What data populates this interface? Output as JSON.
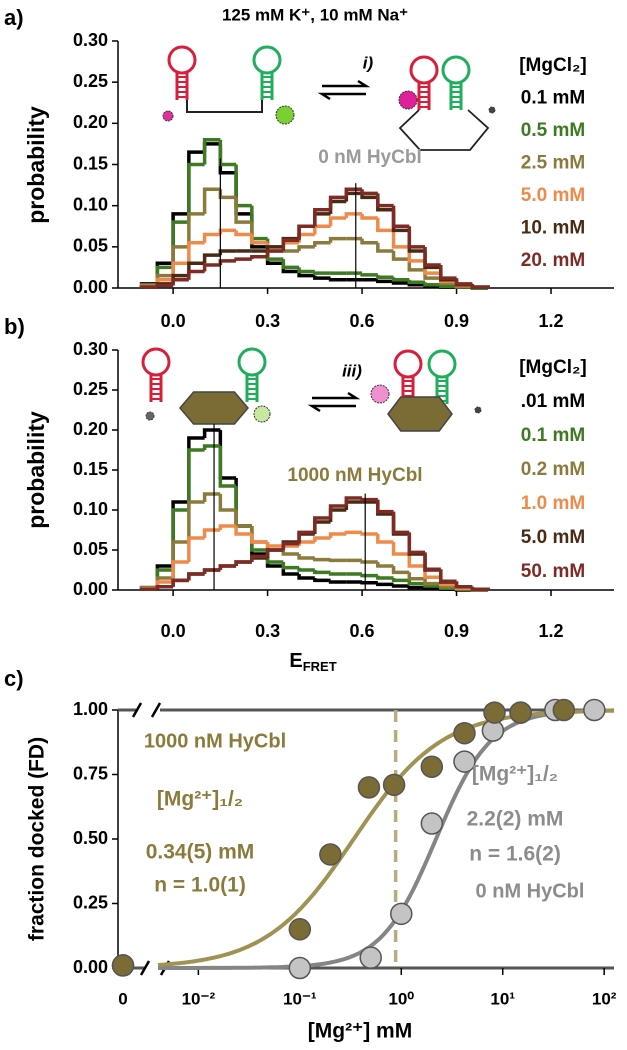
{
  "chart_data": [
    {
      "type": "histogram",
      "panel_label": "a)",
      "title": "125 mM K⁺, 10 mM Na⁺",
      "ylabel": "probability",
      "annotations": [
        {
          "text": "i)",
          "color": "#000000"
        },
        {
          "text": "0 nM HyCbl",
          "color": "#9a9a9a"
        }
      ],
      "legend_title": "[MgCl₂]",
      "bins": [
        -0.1,
        -0.05,
        0,
        0.05,
        0.1,
        0.15,
        0.2,
        0.25,
        0.3,
        0.35,
        0.4,
        0.45,
        0.5,
        0.55,
        0.6,
        0.65,
        0.7,
        0.75,
        0.8,
        0.85,
        0.9,
        0.95,
        1.0
      ],
      "series": [
        {
          "name": "0.1 mM",
          "color": "#000000",
          "values": [
            0.005,
            0.03,
            0.09,
            0.165,
            0.175,
            0.14,
            0.09,
            0.05,
            0.03,
            0.02,
            0.015,
            0.012,
            0.01,
            0.01,
            0.01,
            0.008,
            0.006,
            0.004,
            0.002,
            0.001,
            0.001,
            0
          ]
        },
        {
          "name": "0.5 mM",
          "color": "#3d7a22",
          "values": [
            0.004,
            0.025,
            0.08,
            0.15,
            0.18,
            0.15,
            0.1,
            0.06,
            0.035,
            0.025,
            0.02,
            0.018,
            0.018,
            0.018,
            0.016,
            0.013,
            0.01,
            0.007,
            0.004,
            0.002,
            0.001,
            0
          ]
        },
        {
          "name": "2.5 mM",
          "color": "#8a7b3c",
          "values": [
            0.003,
            0.015,
            0.05,
            0.09,
            0.12,
            0.11,
            0.08,
            0.055,
            0.045,
            0.045,
            0.05,
            0.055,
            0.06,
            0.06,
            0.055,
            0.045,
            0.035,
            0.022,
            0.012,
            0.006,
            0.002,
            0.001
          ]
        },
        {
          "name": "5.0 mM",
          "color": "#ee8a4a",
          "values": [
            0.002,
            0.01,
            0.03,
            0.055,
            0.065,
            0.07,
            0.065,
            0.055,
            0.05,
            0.055,
            0.065,
            0.075,
            0.085,
            0.09,
            0.085,
            0.07,
            0.05,
            0.033,
            0.018,
            0.008,
            0.003,
            0.001
          ]
        },
        {
          "name": "10. mM",
          "color": "#4a2a12",
          "values": [
            0.001,
            0.005,
            0.015,
            0.03,
            0.04,
            0.045,
            0.045,
            0.045,
            0.05,
            0.06,
            0.075,
            0.09,
            0.105,
            0.115,
            0.11,
            0.095,
            0.07,
            0.045,
            0.025,
            0.01,
            0.004,
            0.001
          ]
        },
        {
          "name": "20. mM",
          "color": "#7d2b24",
          "values": [
            0.001,
            0.003,
            0.01,
            0.02,
            0.028,
            0.033,
            0.035,
            0.038,
            0.045,
            0.058,
            0.075,
            0.095,
            0.11,
            0.12,
            0.115,
            0.1,
            0.075,
            0.05,
            0.028,
            0.012,
            0.005,
            0.001
          ]
        }
      ],
      "vlines": [
        0.15,
        0.58
      ],
      "xlim": [
        -0.175,
        1.4
      ],
      "xticks": [
        {
          "value": 0,
          "label": "0.0"
        },
        0.3,
        0.6,
        0.9,
        1.2
      ],
      "ylim": [
        0,
        0.3
      ],
      "yticks": [
        {
          "value": 0,
          "label": "0.00"
        },
        0.05,
        {
          "value": 0.1,
          "label": "0.10"
        },
        0.15,
        {
          "value": 0.2,
          "label": "0.20"
        },
        0.25,
        {
          "value": 0.3,
          "label": "0.30"
        }
      ]
    },
    {
      "type": "histogram",
      "panel_label": "b)",
      "ylabel": "probability",
      "xlabel": {
        "main": "E",
        "sub": "FRET"
      },
      "annotations": [
        {
          "text": "iii)",
          "color": "#000000"
        },
        {
          "text": "1000 nM HyCbl",
          "color": "#8a7b3c"
        }
      ],
      "legend_title": "[MgCl₂]",
      "bins": [
        -0.1,
        -0.05,
        0,
        0.05,
        0.1,
        0.15,
        0.2,
        0.25,
        0.3,
        0.35,
        0.4,
        0.45,
        0.5,
        0.55,
        0.6,
        0.65,
        0.7,
        0.75,
        0.8,
        0.85,
        0.9,
        0.95,
        1.0
      ],
      "series": [
        {
          "name": ".01 mM",
          "color": "#000000",
          "values": [
            0.003,
            0.03,
            0.11,
            0.19,
            0.2,
            0.14,
            0.08,
            0.045,
            0.03,
            0.02,
            0.015,
            0.012,
            0.01,
            0.01,
            0.009,
            0.007,
            0.005,
            0.003,
            0.002,
            0.001,
            0,
            0
          ]
        },
        {
          "name": "0.1 mM",
          "color": "#3d7a22",
          "values": [
            0.003,
            0.025,
            0.1,
            0.175,
            0.18,
            0.13,
            0.08,
            0.05,
            0.035,
            0.028,
            0.025,
            0.022,
            0.02,
            0.02,
            0.018,
            0.015,
            0.012,
            0.008,
            0.005,
            0.002,
            0.001,
            0
          ]
        },
        {
          "name": "0.2 mM",
          "color": "#8a7b3c",
          "values": [
            0.002,
            0.015,
            0.06,
            0.11,
            0.12,
            0.1,
            0.08,
            0.06,
            0.05,
            0.045,
            0.04,
            0.038,
            0.037,
            0.037,
            0.035,
            0.03,
            0.022,
            0.014,
            0.008,
            0.004,
            0.002,
            0
          ]
        },
        {
          "name": "1.0 mM",
          "color": "#ee8a4a",
          "values": [
            0.002,
            0.01,
            0.035,
            0.065,
            0.075,
            0.08,
            0.07,
            0.06,
            0.055,
            0.055,
            0.06,
            0.065,
            0.07,
            0.072,
            0.07,
            0.06,
            0.045,
            0.03,
            0.016,
            0.007,
            0.002,
            0.001
          ]
        },
        {
          "name": "5.0 mM",
          "color": "#4a2a12",
          "values": [
            0.001,
            0.004,
            0.012,
            0.02,
            0.025,
            0.03,
            0.035,
            0.04,
            0.05,
            0.06,
            0.07,
            0.085,
            0.1,
            0.11,
            0.11,
            0.095,
            0.07,
            0.045,
            0.025,
            0.01,
            0.004,
            0.001
          ]
        },
        {
          "name": "50. mM",
          "color": "#7d2b24",
          "values": [
            0.001,
            0.004,
            0.012,
            0.02,
            0.025,
            0.03,
            0.035,
            0.042,
            0.05,
            0.058,
            0.072,
            0.09,
            0.105,
            0.115,
            0.113,
            0.098,
            0.072,
            0.047,
            0.026,
            0.011,
            0.004,
            0.001
          ]
        }
      ],
      "vlines": [
        0.13,
        0.61
      ],
      "xlim": [
        -0.175,
        1.4
      ],
      "xticks": [
        {
          "value": 0,
          "label": "0.0"
        },
        0.3,
        0.6,
        0.9,
        1.2
      ],
      "ylim": [
        0,
        0.3
      ],
      "yticks": [
        {
          "value": 0,
          "label": "0.00"
        },
        0.05,
        {
          "value": 0.1,
          "label": "0.10"
        },
        0.15,
        {
          "value": 0.2,
          "label": "0.20"
        },
        0.25,
        {
          "value": 0.3,
          "label": "0.30"
        }
      ]
    },
    {
      "type": "scatter",
      "panel_label": "c)",
      "xscale": "log",
      "xlabel": "[Mg²⁺] mM",
      "ylabel": "fraction docked (FD)",
      "series": [
        {
          "name": "1000 nM HyCbl",
          "color": "#7b6c35",
          "line_color": "#a09252",
          "x": [
            0,
            0.1,
            0.2,
            0.48,
            0.85,
            2,
            4.2,
            8.3,
            15,
            40
          ],
          "values": [
            0.01,
            0.15,
            0.44,
            0.7,
            0.71,
            0.78,
            0.91,
            0.99,
            0.99,
            1.0
          ],
          "fit": {
            "k_half": 0.34,
            "n": 1.0
          },
          "annotations": [
            "[Mg²⁺]₁/₂",
            "0.34(5) mM",
            "n = 1.0(1)"
          ]
        },
        {
          "name": "0 nM HyCbl",
          "color": "#c4c4c4",
          "line_color": "#858585",
          "x": [
            0,
            0.1,
            0.5,
            1,
            2,
            4.2,
            8,
            15,
            33,
            80
          ],
          "values": [
            0.01,
            0,
            0.04,
            0.21,
            0.56,
            0.8,
            0.92,
            0.99,
            1.0,
            1.0
          ],
          "fit": {
            "k_half": 2.2,
            "n": 1.6
          },
          "annotations": [
            "[Mg²⁺]₁/₂",
            "2.2(2) mM",
            "n = 1.6(2)"
          ]
        }
      ],
      "vline": 0.88,
      "zero_tick": {
        "value": 0,
        "label": "0"
      },
      "xlim": [
        0.004,
        125
      ],
      "xticks": [
        {
          "value": 0.01,
          "label": "10⁻²"
        },
        {
          "value": 0.1,
          "label": "10⁻¹"
        },
        {
          "value": 1,
          "label": "10⁰"
        },
        {
          "value": 10,
          "label": "10¹"
        },
        {
          "value": 100,
          "label": "10²"
        }
      ],
      "ylim": [
        0,
        1
      ],
      "yticks": [
        {
          "value": 0,
          "label": "0.00"
        },
        0.25,
        {
          "value": 0.5,
          "label": "0.50"
        },
        0.75,
        {
          "value": 1,
          "label": "1.00"
        }
      ]
    }
  ]
}
